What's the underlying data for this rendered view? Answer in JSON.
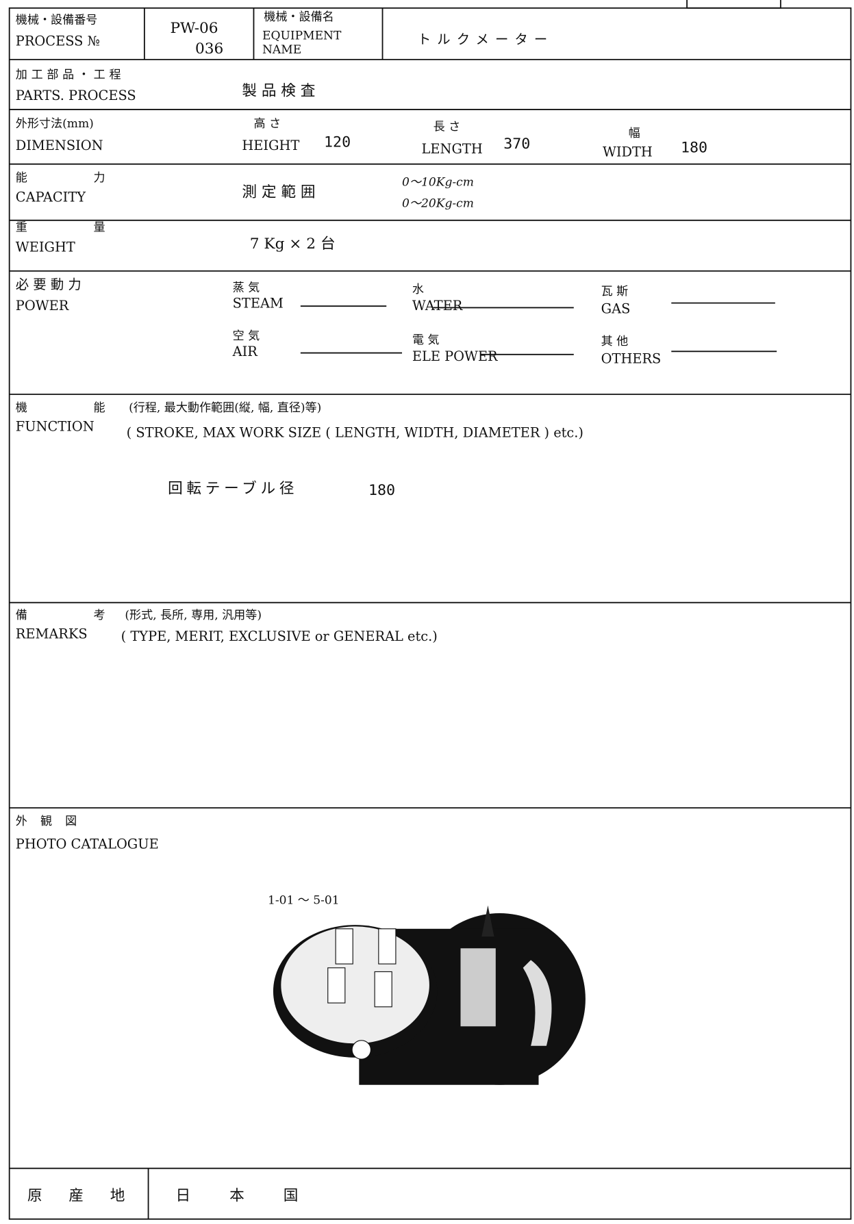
{
  "header_box": "",
  "equipment": {
    "process_no_label_ja": "機械・設備番号",
    "process_no_label_en": "PROCESS №",
    "process_no": [
      "PW-06",
      "036"
    ],
    "name_label_ja": "機械・設備名",
    "name_label_en": [
      "EQUIPMENT",
      "NAME"
    ],
    "name": "トルクメーター"
  },
  "parts_process": {
    "label_ja": "加工部品・工程",
    "label_en": "PARTS. PROCESS",
    "value": "製品検査"
  },
  "dimension": {
    "label_ja": "外形寸法(mm)",
    "label_en": "DIMENSION",
    "height": {
      "label_ja": "高 さ",
      "label_en": "HEIGHT",
      "value": "120"
    },
    "length": {
      "label_ja": "長 さ",
      "label_en": "LENGTH",
      "value": "370"
    },
    "width": {
      "label_ja": "幅",
      "label_en": "WIDTH",
      "value": "180"
    }
  },
  "capacity": {
    "label_ja": "能 力",
    "label_en": "CAPACITY",
    "item": "測 定 範 囲",
    "values": [
      "0〜10Kg-cm",
      "0〜20Kg-cm"
    ]
  },
  "weight": {
    "label_ja": "重 量",
    "label_en": "WEIGHT",
    "value": "7 Kg × 2 台"
  },
  "power": {
    "label_ja": "必 要 動 力",
    "label_en": "POWER",
    "steam": {
      "ja": "蒸 気",
      "en": "STEAM"
    },
    "water": {
      "ja": "水",
      "en": "WATER"
    },
    "gas": {
      "ja": "瓦 斯",
      "en": "GAS"
    },
    "air": {
      "ja": "空 気",
      "en": "AIR"
    },
    "electric": {
      "ja": "電 気",
      "en": "ELE POWER"
    },
    "others": {
      "ja": "其 他",
      "en": "OTHERS"
    }
  },
  "function": {
    "label_ja": "機 能",
    "note_ja": "(行程, 最大動作範囲(縦, 幅, 直径)等)",
    "label_en": "FUNCTION",
    "note_en": "( STROKE, MAX WORK SIZE ( LENGTH, WIDTH, DIAMETER ) etc.)",
    "item": "回転テーブル径",
    "value": "180"
  },
  "remarks": {
    "label_ja": "備 考",
    "note_ja": "(形式, 長所, 専用, 汎用等)",
    "label_en": "REMARKS",
    "note_en": "( TYPE, MERIT, EXCLUSIVE or GENERAL etc.)"
  },
  "photo": {
    "label_ja": "外 観 図",
    "label_en": "PHOTO CATALOGUE",
    "caption": "1-01 〜 5-01"
  },
  "origin": {
    "label": "原 産 地",
    "value": "日 本 国"
  }
}
